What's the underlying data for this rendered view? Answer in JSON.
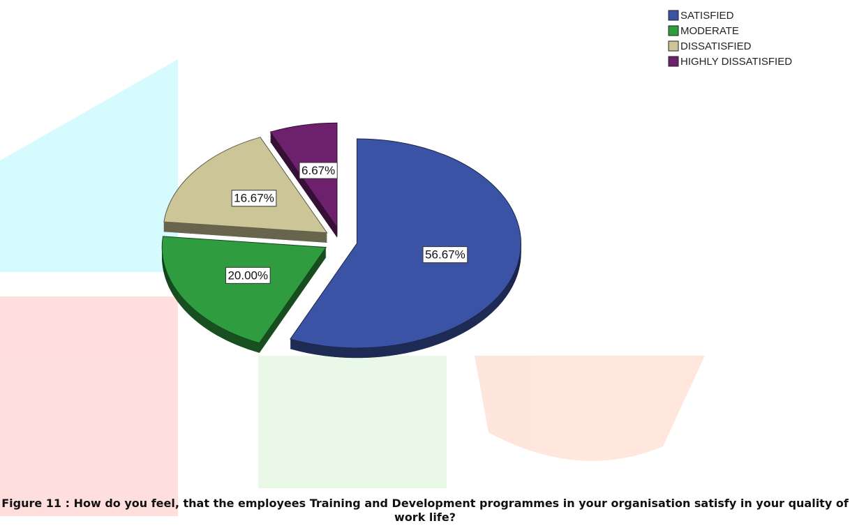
{
  "chart_data": {
    "type": "pie",
    "title": "Figure 11 : How do you feel, that the employees Training and Development programmes in your organisation satisfy in your quality of work life?",
    "categories": [
      "SATISFIED",
      "MODERATE",
      "DISSATISFIED",
      "HIGHLY DISSATISFIED"
    ],
    "values": [
      56.67,
      20.0,
      16.67,
      6.67
    ],
    "value_labels": [
      "56.67%",
      "20.00%",
      "16.67%",
      "6.67%"
    ],
    "colors": [
      "#3b53a4",
      "#2f9c3f",
      "#cbc597",
      "#6d216d"
    ],
    "legend": "top-right"
  }
}
